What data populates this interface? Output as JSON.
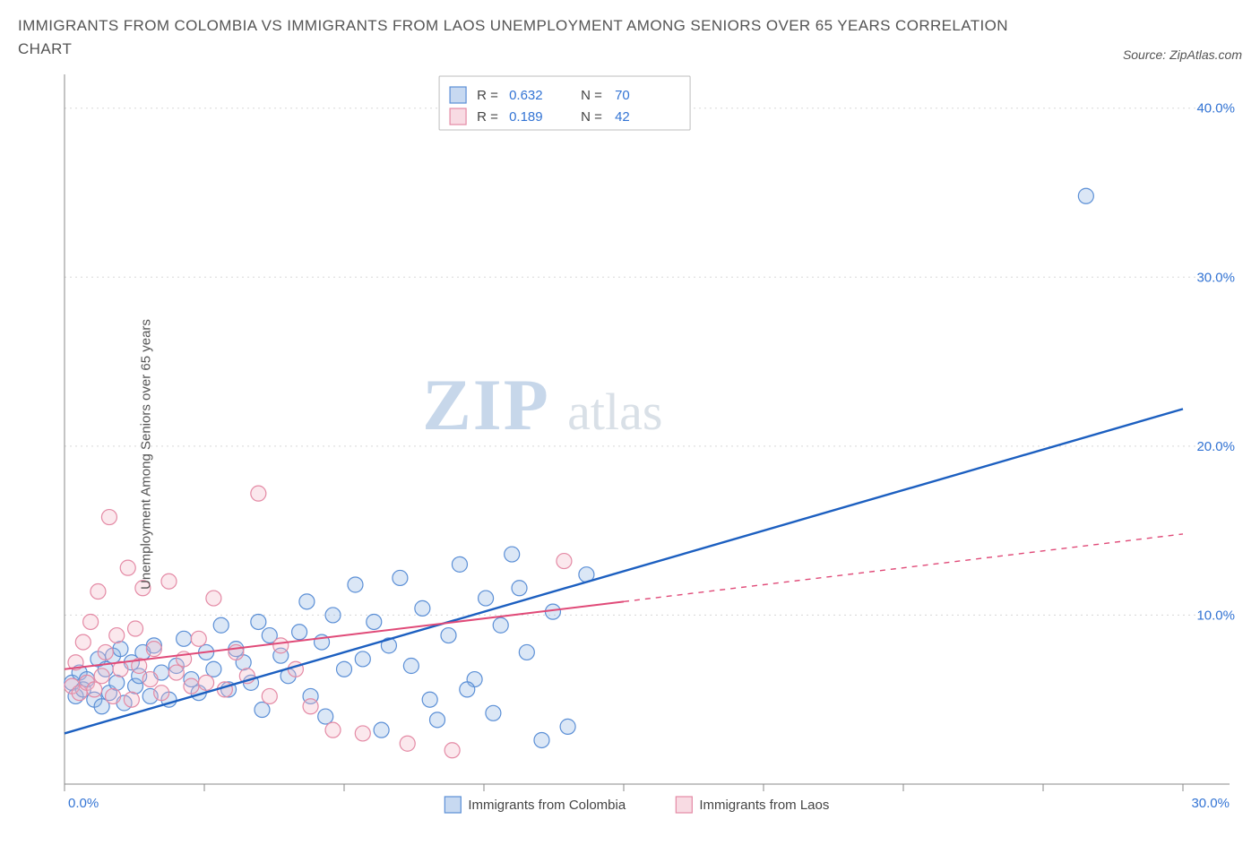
{
  "title": "IMMIGRANTS FROM COLOMBIA VS IMMIGRANTS FROM LAOS UNEMPLOYMENT AMONG SENIORS OVER 65 YEARS CORRELATION CHART",
  "source_label": "Source: ZipAtlas.com",
  "y_axis_label": "Unemployment Among Seniors over 65 years",
  "watermark": {
    "part1": "ZIP",
    "part2": "atlas"
  },
  "chart": {
    "type": "scatter-with-regression",
    "background_color": "#ffffff",
    "grid_color": "#d8d8d8",
    "axis_color": "#888888",
    "xlim": [
      0,
      30
    ],
    "ylim": [
      0,
      42
    ],
    "x_ticks": [
      0,
      3.75,
      7.5,
      11.25,
      15,
      18.75,
      22.5,
      26.25,
      30
    ],
    "x_tick_labels": {
      "0": "0.0%",
      "30": "30.0%"
    },
    "y_ticks": [
      10,
      20,
      30,
      40
    ],
    "y_tick_labels": {
      "10": "10.0%",
      "20": "20.0%",
      "30": "30.0%",
      "40": "40.0%"
    },
    "point_radius": 8.5,
    "point_stroke_width": 1.2,
    "point_fill_opacity": 0.32,
    "series": [
      {
        "id": "colombia",
        "label": "Immigrants from Colombia",
        "color_stroke": "#5b8fd6",
        "color_fill": "#8fb4e4",
        "R": "0.632",
        "N": "70",
        "regression": {
          "solid": {
            "x1": 0,
            "y1": 3.0,
            "x2": 30,
            "y2": 22.2
          },
          "line_color": "#1c5fc0",
          "line_width": 2.4
        },
        "points": [
          [
            0.2,
            6.0
          ],
          [
            0.3,
            5.2
          ],
          [
            0.4,
            6.6
          ],
          [
            0.5,
            5.6
          ],
          [
            0.6,
            6.2
          ],
          [
            0.8,
            5.0
          ],
          [
            0.9,
            7.4
          ],
          [
            1.0,
            4.6
          ],
          [
            1.1,
            6.8
          ],
          [
            1.2,
            5.4
          ],
          [
            1.3,
            7.6
          ],
          [
            1.4,
            6.0
          ],
          [
            1.5,
            8.0
          ],
          [
            1.6,
            4.8
          ],
          [
            1.8,
            7.2
          ],
          [
            1.9,
            5.8
          ],
          [
            2.0,
            6.4
          ],
          [
            2.1,
            7.8
          ],
          [
            2.3,
            5.2
          ],
          [
            2.4,
            8.2
          ],
          [
            2.6,
            6.6
          ],
          [
            2.8,
            5.0
          ],
          [
            3.0,
            7.0
          ],
          [
            3.2,
            8.6
          ],
          [
            3.4,
            6.2
          ],
          [
            3.6,
            5.4
          ],
          [
            3.8,
            7.8
          ],
          [
            4.0,
            6.8
          ],
          [
            4.2,
            9.4
          ],
          [
            4.4,
            5.6
          ],
          [
            4.6,
            8.0
          ],
          [
            4.8,
            7.2
          ],
          [
            5.0,
            6.0
          ],
          [
            5.3,
            4.4
          ],
          [
            5.5,
            8.8
          ],
          [
            5.8,
            7.6
          ],
          [
            6.0,
            6.4
          ],
          [
            6.3,
            9.0
          ],
          [
            6.6,
            5.2
          ],
          [
            6.9,
            8.4
          ],
          [
            7.2,
            10.0
          ],
          [
            7.5,
            6.8
          ],
          [
            7.8,
            11.8
          ],
          [
            8.0,
            7.4
          ],
          [
            8.3,
            9.6
          ],
          [
            8.7,
            8.2
          ],
          [
            9.0,
            12.2
          ],
          [
            9.3,
            7.0
          ],
          [
            9.6,
            10.4
          ],
          [
            10.0,
            3.8
          ],
          [
            10.3,
            8.8
          ],
          [
            10.6,
            13.0
          ],
          [
            11.0,
            6.2
          ],
          [
            11.3,
            11.0
          ],
          [
            11.7,
            9.4
          ],
          [
            12.0,
            13.6
          ],
          [
            12.4,
            7.8
          ],
          [
            12.8,
            2.6
          ],
          [
            13.1,
            10.2
          ],
          [
            13.5,
            3.4
          ],
          [
            14.0,
            12.4
          ],
          [
            10.8,
            5.6
          ],
          [
            11.5,
            4.2
          ],
          [
            12.2,
            11.6
          ],
          [
            9.8,
            5.0
          ],
          [
            8.5,
            3.2
          ],
          [
            7.0,
            4.0
          ],
          [
            6.5,
            10.8
          ],
          [
            5.2,
            9.6
          ],
          [
            27.4,
            34.8
          ]
        ]
      },
      {
        "id": "laos",
        "label": "Immigrants from Laos",
        "color_stroke": "#e48aa5",
        "color_fill": "#f2b7c8",
        "R": "0.189",
        "N": "42",
        "regression": {
          "solid": {
            "x1": 0,
            "y1": 6.8,
            "x2": 15,
            "y2": 10.8
          },
          "dashed": {
            "x1": 15,
            "y1": 10.8,
            "x2": 30,
            "y2": 14.8
          },
          "line_color": "#e04a78",
          "line_width": 2.0
        },
        "points": [
          [
            0.2,
            5.8
          ],
          [
            0.3,
            7.2
          ],
          [
            0.4,
            5.4
          ],
          [
            0.5,
            8.4
          ],
          [
            0.6,
            6.0
          ],
          [
            0.7,
            9.6
          ],
          [
            0.8,
            5.6
          ],
          [
            0.9,
            11.4
          ],
          [
            1.0,
            6.4
          ],
          [
            1.1,
            7.8
          ],
          [
            1.2,
            15.8
          ],
          [
            1.3,
            5.2
          ],
          [
            1.4,
            8.8
          ],
          [
            1.5,
            6.8
          ],
          [
            1.7,
            12.8
          ],
          [
            1.8,
            5.0
          ],
          [
            1.9,
            9.2
          ],
          [
            2.0,
            7.0
          ],
          [
            2.1,
            11.6
          ],
          [
            2.3,
            6.2
          ],
          [
            2.4,
            8.0
          ],
          [
            2.6,
            5.4
          ],
          [
            2.8,
            12.0
          ],
          [
            3.0,
            6.6
          ],
          [
            3.2,
            7.4
          ],
          [
            3.4,
            5.8
          ],
          [
            3.6,
            8.6
          ],
          [
            3.8,
            6.0
          ],
          [
            4.0,
            11.0
          ],
          [
            4.3,
            5.6
          ],
          [
            4.6,
            7.8
          ],
          [
            4.9,
            6.4
          ],
          [
            5.2,
            17.2
          ],
          [
            5.5,
            5.2
          ],
          [
            5.8,
            8.2
          ],
          [
            6.2,
            6.8
          ],
          [
            6.6,
            4.6
          ],
          [
            7.2,
            3.2
          ],
          [
            8.0,
            3.0
          ],
          [
            9.2,
            2.4
          ],
          [
            10.4,
            2.0
          ],
          [
            13.4,
            13.2
          ]
        ]
      }
    ],
    "top_legend": {
      "rows": [
        {
          "swatch_stroke": "#5b8fd6",
          "swatch_fill": "#8fb4e4",
          "R_label": "R =",
          "R_value": "0.632",
          "N_label": "N =",
          "N_value": "70"
        },
        {
          "swatch_stroke": "#e48aa5",
          "swatch_fill": "#f2b7c8",
          "R_label": "R =",
          "R_value": "0.189",
          "N_label": "N =",
          "N_value": "42"
        }
      ]
    },
    "bottom_legend": [
      {
        "swatch_stroke": "#5b8fd6",
        "swatch_fill": "#8fb4e4",
        "label": "Immigrants from Colombia"
      },
      {
        "swatch_stroke": "#e48aa5",
        "swatch_fill": "#f2b7c8",
        "label": "Immigrants from Laos"
      }
    ]
  }
}
